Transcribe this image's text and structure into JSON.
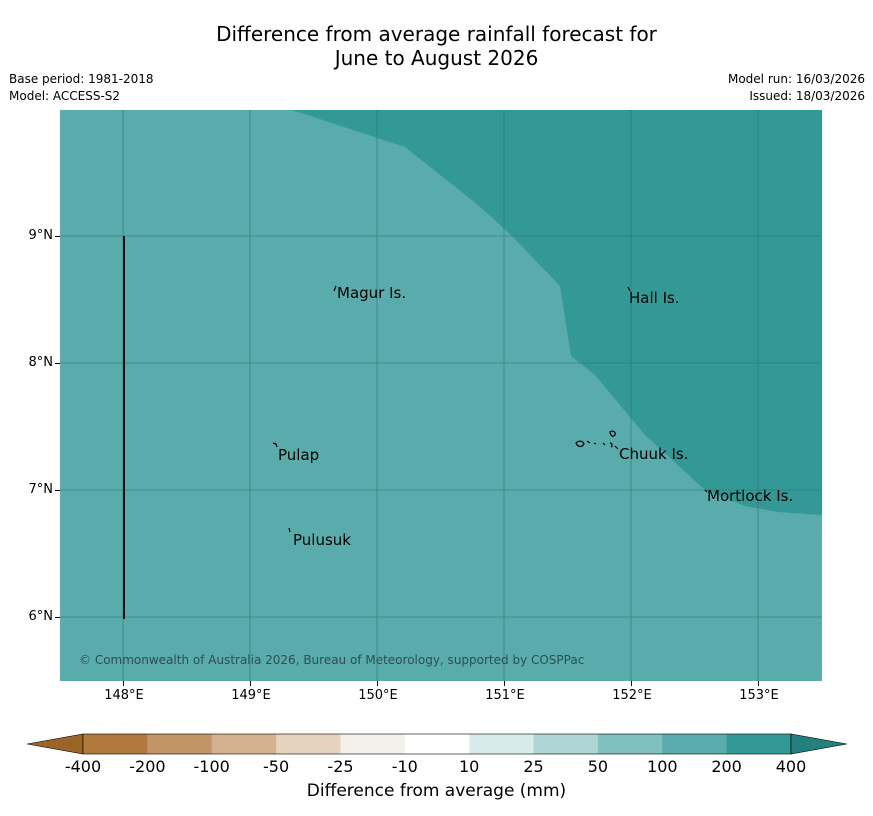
{
  "title": {
    "line1": "Difference from average rainfall forecast for",
    "line2": "June to August 2026"
  },
  "meta": {
    "base_period": "Base period: 1981-2018",
    "model": "Model: ACCESS-S2",
    "model_run": "Model run: 16/03/2026",
    "issued": "Issued: 18/03/2026"
  },
  "map": {
    "lat_labels": [
      "9°N",
      "8°N",
      "7°N",
      "6°N"
    ],
    "lon_labels": [
      "148°E",
      "149°E",
      "150°E",
      "151°E",
      "152°E",
      "153°E"
    ],
    "places": [
      "Magur Is.",
      "Hall Is.",
      "Pulap",
      "Chuuk Is.",
      "Mortlock Is.",
      "Pulusuk"
    ],
    "copyright": "© Commonwealth of Australia 2026, Bureau of Meteorology, supported by COSPPac",
    "colors": {
      "category_50_100": "#5aabab",
      "category_100_200": "#339996"
    }
  },
  "colorbar": {
    "title": "Difference from average (mm)",
    "labels": [
      "-400",
      "-200",
      "-100",
      "-50",
      "-25",
      "-10",
      "10",
      "25",
      "50",
      "100",
      "200",
      "400"
    ],
    "colors": [
      "#b07a3e",
      "#c29567",
      "#d3b18f",
      "#e5d3c0",
      "#f2f0ea",
      "#ffffff",
      "#d7ecea",
      "#acd5d4",
      "#80c1c0",
      "#5aabab",
      "#339996"
    ],
    "low_extend_color": "#9b6527",
    "high_extend_color": "#23807c"
  }
}
